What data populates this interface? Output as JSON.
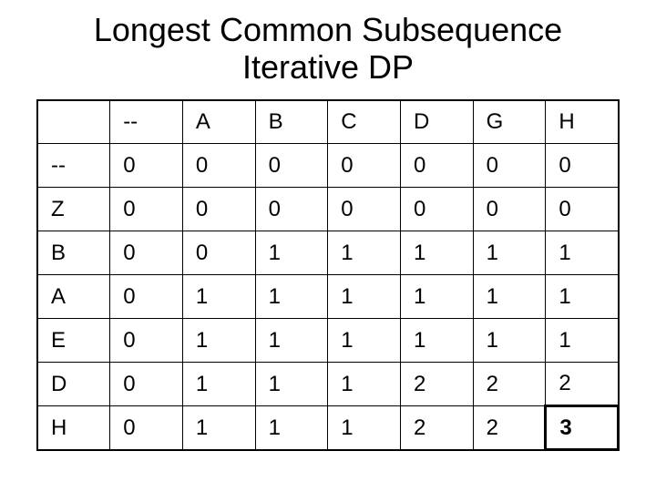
{
  "title_line1": "Longest Common Subsequence",
  "title_line2": "Iterative DP",
  "table": {
    "col_headers": [
      "--",
      "A",
      "B",
      "C",
      "D",
      "G",
      "H"
    ],
    "row_headers": [
      "--",
      "Z",
      "B",
      "A",
      "E",
      "D",
      "H"
    ],
    "rows": [
      [
        "0",
        "0",
        "0",
        "0",
        "0",
        "0",
        "0"
      ],
      [
        "0",
        "0",
        "0",
        "0",
        "0",
        "0",
        "0"
      ],
      [
        "0",
        "0",
        "1",
        "1",
        "1",
        "1",
        "1"
      ],
      [
        "0",
        "1",
        "1",
        "1",
        "1",
        "1",
        "1"
      ],
      [
        "0",
        "1",
        "1",
        "1",
        "1",
        "1",
        "1"
      ],
      [
        "0",
        "1",
        "1",
        "1",
        "2",
        "2",
        "2"
      ],
      [
        "0",
        "1",
        "1",
        "1",
        "2",
        "2",
        "3"
      ]
    ],
    "highlight": {
      "row": 6,
      "col": 6
    },
    "border_color": "#000000",
    "background_color": "#ffffff",
    "text_color": "#000000",
    "font_size_pt": 18,
    "cell_align": "left"
  }
}
